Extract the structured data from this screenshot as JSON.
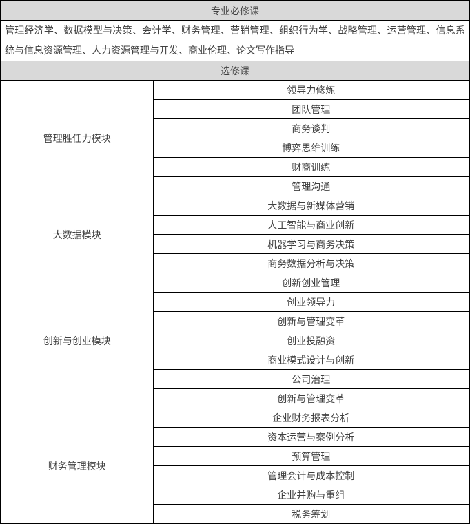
{
  "table": {
    "required_header": "专业必修课",
    "required_courses": "管理经济学、数据模型与决策、会计学、财务管理、营销管理、组织行为学、战略管理、运营管理、信息系统与信息资源管理、人力资源管理与开发、商业伦理、论文写作指导",
    "elective_header": "选修课",
    "modules": [
      {
        "name": "管理胜任力模块",
        "courses": [
          "领导力修炼",
          "团队管理",
          "商务谈判",
          "博弈思维训练",
          "财商训练",
          "管理沟通"
        ]
      },
      {
        "name": "大数据模块",
        "courses": [
          "大数据与新媒体营销",
          "人工智能与商业创新",
          "机器学习与商务决策",
          "商务数据分析与决策"
        ]
      },
      {
        "name": "创新与创业模块",
        "courses": [
          "创新创业管理",
          "创业领导力",
          "创新与管理变革",
          "创业投融资",
          "商业模式设计与创新",
          "公司治理",
          "创新与管理变革"
        ]
      },
      {
        "name": "财务管理模块",
        "courses": [
          "企业财务报表分析",
          "资本运营与案例分析",
          "预算管理",
          "管理会计与成本控制",
          "企业并购与重组",
          "税务筹划"
        ]
      }
    ],
    "colors": {
      "header_bg": "#d9d9d9",
      "border": "#000000",
      "text": "#404040"
    }
  }
}
